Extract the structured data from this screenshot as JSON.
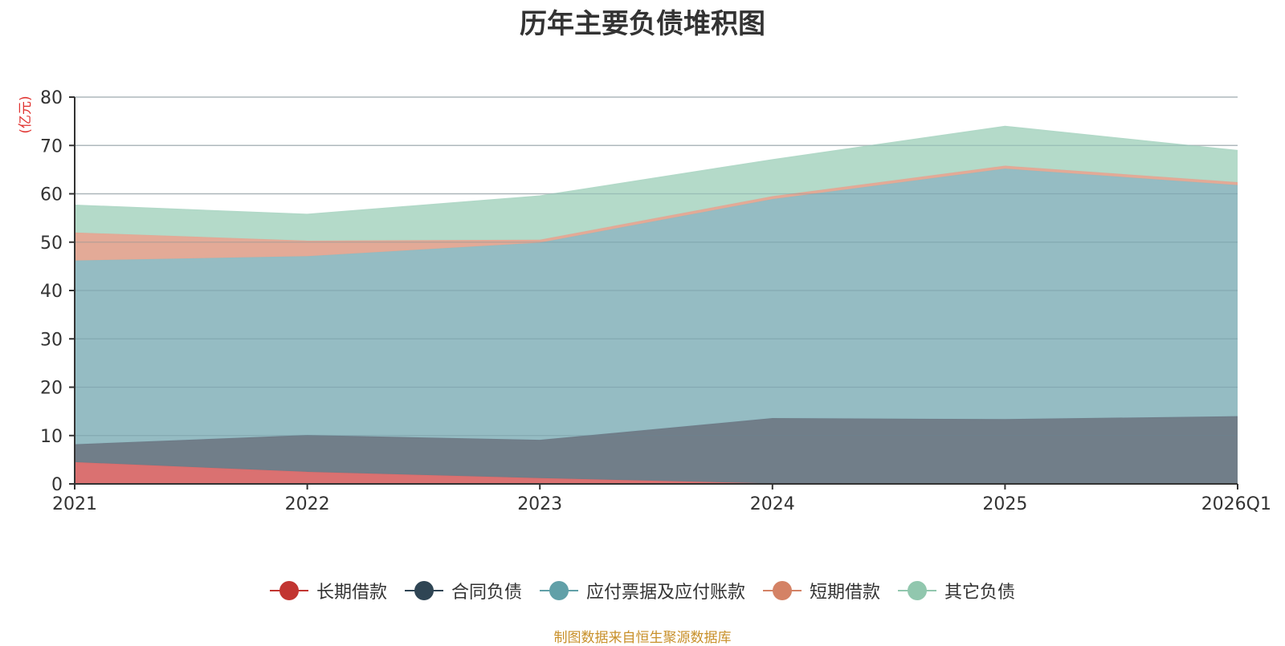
{
  "chart_data": {
    "type": "area",
    "stacked": true,
    "title": "历年主要负债堆积图",
    "ylabel": "(亿元)",
    "xlabel": "",
    "categories": [
      "2021",
      "2022",
      "2023",
      "2024",
      "2025",
      "2026Q1"
    ],
    "ylim": [
      0,
      80
    ],
    "yticks": [
      0,
      10,
      20,
      30,
      40,
      50,
      60,
      70,
      80
    ],
    "grid": true,
    "legend_position": "bottom",
    "series": [
      {
        "name": "长期借款",
        "values": [
          4.5,
          2.5,
          1.2,
          0.1,
          0,
          0
        ],
        "color": "#c23531",
        "fill": "#d96e6e"
      },
      {
        "name": "合同负债",
        "values": [
          3.7,
          7.6,
          7.9,
          13.5,
          13.4,
          14.0
        ],
        "color": "#2f4554",
        "fill": "#6e7b87"
      },
      {
        "name": "应付票据及应付账款",
        "values": [
          38.0,
          37.0,
          40.8,
          45.3,
          51.8,
          47.8
        ],
        "color": "#61a0a8",
        "fill": "#93bbc2"
      },
      {
        "name": "短期借款",
        "values": [
          5.8,
          3.2,
          0.6,
          0.6,
          0.6,
          0.6
        ],
        "color": "#d48265",
        "fill": "#e2a895"
      },
      {
        "name": "其它负债",
        "values": [
          5.6,
          5.4,
          9.0,
          7.5,
          8.1,
          6.5
        ],
        "color": "#91c7ae",
        "fill": "#b2d9c8"
      }
    ]
  },
  "source_note": "制图数据来自恒生聚源数据库"
}
